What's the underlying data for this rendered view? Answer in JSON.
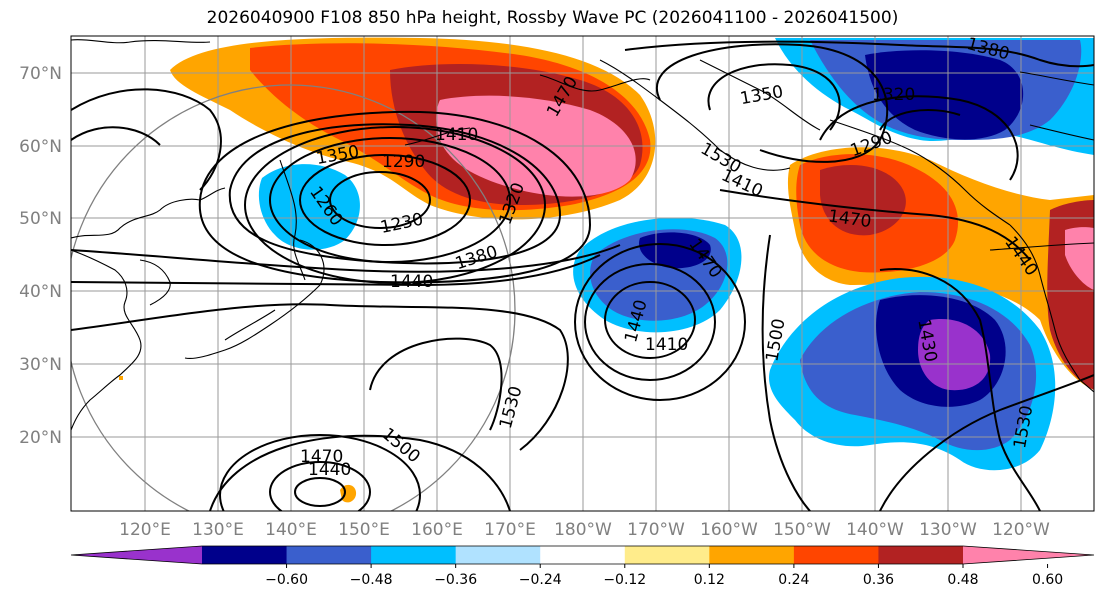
{
  "title": "2026040900 F108 850 hPa height, Rossby Wave PC (2026041100 - 2026041500)",
  "lat_labels": [
    "70°N",
    "60°N",
    "50°N",
    "40°N",
    "30°N",
    "20°N"
  ],
  "lon_labels": [
    "120°E",
    "130°E",
    "140°E",
    "150°E",
    "160°E",
    "170°E",
    "180°W",
    "170°W",
    "160°W",
    "150°W",
    "140°W",
    "130°W",
    "120°W"
  ],
  "contour_labels": [
    "1380",
    "1350",
    "1320",
    "1290",
    "1470",
    "1410",
    "1350",
    "1290",
    "1230",
    "1260",
    "1320",
    "1380",
    "1440",
    "1410",
    "1470",
    "1440",
    "1410",
    "1500",
    "1470",
    "1440",
    "1530",
    "1470",
    "1440",
    "1500",
    "1530",
    "1430",
    "1530"
  ],
  "colorbar": {
    "ticks": [
      "−0.60",
      "−0.48",
      "−0.36",
      "−0.24",
      "−0.12",
      "0.12",
      "0.24",
      "0.36",
      "0.48",
      "0.60"
    ],
    "colors": [
      "#9932cc",
      "#00008b",
      "#3a5fcd",
      "#00bfff",
      "#b0e2ff",
      "#ffffff",
      "#ffec8b",
      "#ffa500",
      "#ff4500",
      "#b22222",
      "#ff82ab"
    ]
  },
  "colors": {
    "pc_n060": "#9932cc",
    "pc_n048": "#00008b",
    "pc_n036": "#3a5fcd",
    "pc_n024": "#00bfff",
    "pc_n012": "#b0e2ff",
    "pc_p024": "#ffa500",
    "pc_p036": "#ff4500",
    "pc_p048": "#b22222",
    "pc_p060": "#ff82ab"
  }
}
